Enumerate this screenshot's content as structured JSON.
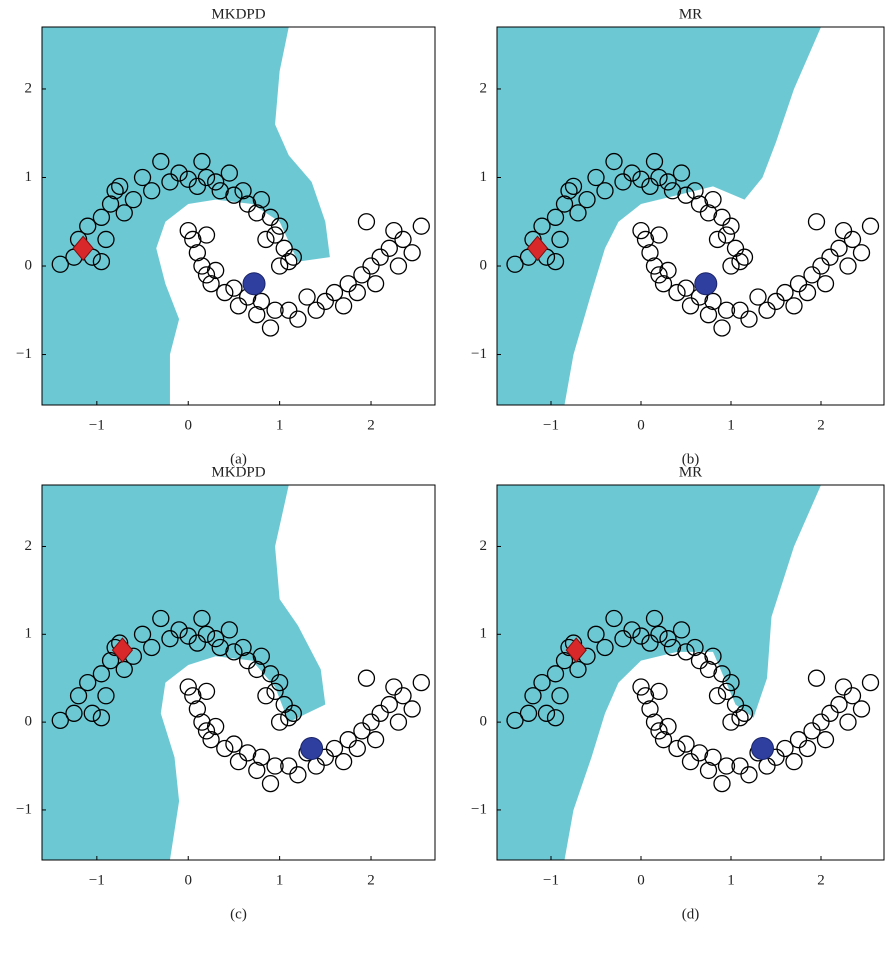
{
  "chart_data": [
    {
      "type": "scatter",
      "title": "MKDPD",
      "caption": "(a)",
      "xlim": [
        -1.6,
        2.7
      ],
      "ylim": [
        -1.57,
        2.7
      ],
      "xticks": [
        {
          "value": -1,
          "label": "−1"
        },
        0,
        1,
        2
      ],
      "yticks": [
        {
          "value": -1,
          "label": "−1"
        },
        0,
        1,
        2
      ],
      "region": {
        "color": "#6cc9d4",
        "x": [
          -1.6,
          1.1,
          1.0,
          0.95,
          1.1,
          1.35,
          1.5,
          1.55,
          1.2,
          1.0,
          0.7,
          0.3,
          0.0,
          -0.25,
          -0.35,
          -0.25,
          -0.1,
          -0.2,
          -0.2,
          -1.6
        ],
        "y": [
          2.7,
          2.7,
          2.2,
          1.6,
          1.25,
          0.95,
          0.5,
          0.1,
          0.05,
          0.5,
          0.7,
          0.75,
          0.7,
          0.5,
          0.2,
          -0.2,
          -0.6,
          -1.0,
          -1.57,
          -1.57
        ]
      },
      "scatter": {
        "color": "#000000",
        "x": [
          -1.4,
          -1.2,
          -1.1,
          -1.05,
          -0.95,
          -0.85,
          -0.8,
          -0.7,
          -0.75,
          -0.6,
          -0.5,
          -0.4,
          -0.3,
          -0.2,
          -0.1,
          0,
          0.1,
          0.15,
          0.2,
          0.3,
          0.35,
          0.45,
          0.5,
          0.6,
          0.65,
          0.75,
          0.8,
          0.9,
          0.95,
          1.0,
          1.05,
          1.1,
          1.15,
          1.0,
          0.85,
          -1.25,
          -0.9,
          -0.95,
          0,
          0.05,
          0.1,
          0.15,
          0.2,
          0.25,
          0.3,
          0.4,
          0.5,
          0.55,
          0.65,
          0.75,
          0.8,
          0.9,
          0.95,
          1.1,
          1.2,
          1.3,
          1.4,
          1.5,
          1.6,
          1.7,
          1.75,
          1.85,
          1.9,
          2.0,
          2.05,
          2.1,
          2.2,
          2.3,
          2.35,
          2.45,
          2.55,
          1.95,
          2.25,
          0.2
        ],
        "y": [
          0.02,
          0.3,
          0.45,
          0.1,
          0.55,
          0.7,
          0.85,
          0.6,
          0.9,
          0.75,
          1.0,
          0.85,
          1.18,
          0.95,
          1.05,
          0.98,
          0.9,
          1.18,
          1.0,
          0.95,
          0.85,
          1.05,
          0.8,
          0.85,
          0.7,
          0.6,
          0.75,
          0.55,
          0.35,
          0.45,
          0.2,
          0.05,
          0.1,
          0.0,
          0.3,
          0.1,
          0.3,
          0.05,
          0.4,
          0.3,
          0.15,
          0.0,
          -0.1,
          -0.2,
          -0.05,
          -0.3,
          -0.25,
          -0.45,
          -0.35,
          -0.55,
          -0.4,
          -0.7,
          -0.5,
          -0.5,
          -0.6,
          -0.35,
          -0.5,
          -0.4,
          -0.3,
          -0.45,
          -0.2,
          -0.3,
          -0.1,
          0.0,
          -0.2,
          0.1,
          0.2,
          0.0,
          0.3,
          0.15,
          0.45,
          0.5,
          0.4,
          0.35
        ]
      },
      "labeled": [
        {
          "marker": "diamond",
          "color": "#d8282a",
          "x": -1.15,
          "y": 0.2
        },
        {
          "marker": "circle",
          "color": "#2e3fa0",
          "x": 0.72,
          "y": -0.2
        }
      ]
    },
    {
      "type": "scatter",
      "title": "MR",
      "caption": "(b)",
      "xlim": [
        -1.6,
        2.7
      ],
      "ylim": [
        -1.57,
        2.7
      ],
      "xticks": [
        {
          "value": -1,
          "label": "−1"
        },
        0,
        1,
        2
      ],
      "yticks": [
        {
          "value": -1,
          "label": "−1"
        },
        0,
        1,
        2
      ],
      "region": {
        "color": "#6cc9d4",
        "x": [
          -1.6,
          2.0,
          1.7,
          1.5,
          1.35,
          1.15,
          0.8,
          0.4,
          0.0,
          -0.25,
          -0.4,
          -0.55,
          -0.75,
          -0.85,
          -1.6
        ],
        "y": [
          2.7,
          2.7,
          2.0,
          1.4,
          1.0,
          0.75,
          0.9,
          0.8,
          0.7,
          0.5,
          0.2,
          -0.3,
          -1.0,
          -1.57,
          -1.57
        ]
      },
      "scatter": {
        "color": "#000000",
        "x": [
          -1.4,
          -1.2,
          -1.1,
          -1.05,
          -0.95,
          -0.85,
          -0.8,
          -0.7,
          -0.75,
          -0.6,
          -0.5,
          -0.4,
          -0.3,
          -0.2,
          -0.1,
          0,
          0.1,
          0.15,
          0.2,
          0.3,
          0.35,
          0.45,
          0.5,
          0.6,
          0.65,
          0.75,
          0.8,
          0.9,
          0.95,
          1.0,
          1.05,
          1.1,
          1.15,
          1.0,
          0.85,
          -1.25,
          -0.9,
          -0.95,
          0,
          0.05,
          0.1,
          0.15,
          0.2,
          0.25,
          0.3,
          0.4,
          0.5,
          0.55,
          0.65,
          0.75,
          0.8,
          0.9,
          0.95,
          1.1,
          1.2,
          1.3,
          1.4,
          1.5,
          1.6,
          1.7,
          1.75,
          1.85,
          1.9,
          2.0,
          2.05,
          2.1,
          2.2,
          2.3,
          2.35,
          2.45,
          2.55,
          1.95,
          2.25,
          0.2
        ],
        "y": [
          0.02,
          0.3,
          0.45,
          0.1,
          0.55,
          0.7,
          0.85,
          0.6,
          0.9,
          0.75,
          1.0,
          0.85,
          1.18,
          0.95,
          1.05,
          0.98,
          0.9,
          1.18,
          1.0,
          0.95,
          0.85,
          1.05,
          0.8,
          0.85,
          0.7,
          0.6,
          0.75,
          0.55,
          0.35,
          0.45,
          0.2,
          0.05,
          0.1,
          0.0,
          0.3,
          0.1,
          0.3,
          0.05,
          0.4,
          0.3,
          0.15,
          0.0,
          -0.1,
          -0.2,
          -0.05,
          -0.3,
          -0.25,
          -0.45,
          -0.35,
          -0.55,
          -0.4,
          -0.7,
          -0.5,
          -0.5,
          -0.6,
          -0.35,
          -0.5,
          -0.4,
          -0.3,
          -0.45,
          -0.2,
          -0.3,
          -0.1,
          0.0,
          -0.2,
          0.1,
          0.2,
          0.0,
          0.3,
          0.15,
          0.45,
          0.5,
          0.4,
          0.35
        ]
      },
      "labeled": [
        {
          "marker": "diamond",
          "color": "#d8282a",
          "x": -1.15,
          "y": 0.2
        },
        {
          "marker": "circle",
          "color": "#2e3fa0",
          "x": 0.72,
          "y": -0.2
        }
      ]
    },
    {
      "type": "scatter",
      "title": "MKDPD",
      "caption": "(c)",
      "xlim": [
        -1.6,
        2.7
      ],
      "ylim": [
        -1.57,
        2.7
      ],
      "xticks": [
        {
          "value": -1,
          "label": "−1"
        },
        0,
        1,
        2
      ],
      "yticks": [
        {
          "value": -1,
          "label": "−1"
        },
        0,
        1,
        2
      ],
      "region": {
        "color": "#6cc9d4",
        "x": [
          -1.6,
          1.1,
          0.95,
          1.0,
          1.2,
          1.45,
          1.5,
          1.1,
          0.95,
          0.7,
          0.3,
          0.0,
          -0.25,
          -0.3,
          -0.15,
          -0.1,
          -0.2,
          -1.6
        ],
        "y": [
          2.7,
          2.7,
          2.0,
          1.4,
          1.1,
          0.6,
          0.2,
          0.0,
          0.4,
          0.7,
          0.75,
          0.65,
          0.45,
          0.1,
          -0.4,
          -0.9,
          -1.57,
          -1.57
        ]
      },
      "scatter": {
        "color": "#000000",
        "x": [
          -1.4,
          -1.2,
          -1.1,
          -1.05,
          -0.95,
          -0.85,
          -0.8,
          -0.7,
          -0.75,
          -0.6,
          -0.5,
          -0.4,
          -0.3,
          -0.2,
          -0.1,
          0,
          0.1,
          0.15,
          0.2,
          0.3,
          0.35,
          0.45,
          0.5,
          0.6,
          0.65,
          0.75,
          0.8,
          0.9,
          0.95,
          1.0,
          1.05,
          1.1,
          1.15,
          1.0,
          0.85,
          -1.25,
          -0.9,
          -0.95,
          0,
          0.05,
          0.1,
          0.15,
          0.2,
          0.25,
          0.3,
          0.4,
          0.5,
          0.55,
          0.65,
          0.75,
          0.8,
          0.9,
          0.95,
          1.1,
          1.2,
          1.3,
          1.4,
          1.5,
          1.6,
          1.7,
          1.75,
          1.85,
          1.9,
          2.0,
          2.05,
          2.1,
          2.2,
          2.3,
          2.35,
          2.45,
          2.55,
          1.95,
          2.25,
          0.2
        ],
        "y": [
          0.02,
          0.3,
          0.45,
          0.1,
          0.55,
          0.7,
          0.85,
          0.6,
          0.9,
          0.75,
          1.0,
          0.85,
          1.18,
          0.95,
          1.05,
          0.98,
          0.9,
          1.18,
          1.0,
          0.95,
          0.85,
          1.05,
          0.8,
          0.85,
          0.7,
          0.6,
          0.75,
          0.55,
          0.35,
          0.45,
          0.2,
          0.05,
          0.1,
          0.0,
          0.3,
          0.1,
          0.3,
          0.05,
          0.4,
          0.3,
          0.15,
          0.0,
          -0.1,
          -0.2,
          -0.05,
          -0.3,
          -0.25,
          -0.45,
          -0.35,
          -0.55,
          -0.4,
          -0.7,
          -0.5,
          -0.5,
          -0.6,
          -0.35,
          -0.5,
          -0.4,
          -0.3,
          -0.45,
          -0.2,
          -0.3,
          -0.1,
          0.0,
          -0.2,
          0.1,
          0.2,
          0.0,
          0.3,
          0.15,
          0.45,
          0.5,
          0.4,
          0.35
        ]
      },
      "labeled": [
        {
          "marker": "diamond",
          "color": "#d8282a",
          "x": -0.72,
          "y": 0.82
        },
        {
          "marker": "circle",
          "color": "#2e3fa0",
          "x": 1.35,
          "y": -0.3
        }
      ]
    },
    {
      "type": "scatter",
      "title": "MR",
      "caption": "(d)",
      "xlim": [
        -1.6,
        2.7
      ],
      "ylim": [
        -1.57,
        2.7
      ],
      "xticks": [
        {
          "value": -1,
          "label": "−1"
        },
        0,
        1,
        2
      ],
      "yticks": [
        {
          "value": -1,
          "label": "−1"
        },
        0,
        1,
        2
      ],
      "region": {
        "color": "#6cc9d4",
        "x": [
          -1.6,
          2.0,
          1.7,
          1.45,
          1.4,
          1.25,
          1.05,
          0.8,
          0.4,
          0.0,
          -0.25,
          -0.4,
          -0.55,
          -0.75,
          -0.85,
          -1.6
        ],
        "y": [
          2.7,
          2.7,
          2.0,
          1.2,
          0.5,
          0.05,
          0.2,
          0.8,
          0.8,
          0.7,
          0.45,
          0.1,
          -0.4,
          -1.0,
          -1.57,
          -1.57
        ]
      },
      "scatter": {
        "color": "#000000",
        "x": [
          -1.4,
          -1.2,
          -1.1,
          -1.05,
          -0.95,
          -0.85,
          -0.8,
          -0.7,
          -0.75,
          -0.6,
          -0.5,
          -0.4,
          -0.3,
          -0.2,
          -0.1,
          0,
          0.1,
          0.15,
          0.2,
          0.3,
          0.35,
          0.45,
          0.5,
          0.6,
          0.65,
          0.75,
          0.8,
          0.9,
          0.95,
          1.0,
          1.05,
          1.1,
          1.15,
          1.0,
          0.85,
          -1.25,
          -0.9,
          -0.95,
          0,
          0.05,
          0.1,
          0.15,
          0.2,
          0.25,
          0.3,
          0.4,
          0.5,
          0.55,
          0.65,
          0.75,
          0.8,
          0.9,
          0.95,
          1.1,
          1.2,
          1.3,
          1.4,
          1.5,
          1.6,
          1.7,
          1.75,
          1.85,
          1.9,
          2.0,
          2.05,
          2.1,
          2.2,
          2.3,
          2.35,
          2.45,
          2.55,
          1.95,
          2.25,
          0.2
        ],
        "y": [
          0.02,
          0.3,
          0.45,
          0.1,
          0.55,
          0.7,
          0.85,
          0.6,
          0.9,
          0.75,
          1.0,
          0.85,
          1.18,
          0.95,
          1.05,
          0.98,
          0.9,
          1.18,
          1.0,
          0.95,
          0.85,
          1.05,
          0.8,
          0.85,
          0.7,
          0.6,
          0.75,
          0.55,
          0.35,
          0.45,
          0.2,
          0.05,
          0.1,
          0.0,
          0.3,
          0.1,
          0.3,
          0.05,
          0.4,
          0.3,
          0.15,
          0.0,
          -0.1,
          -0.2,
          -0.05,
          -0.3,
          -0.25,
          -0.45,
          -0.35,
          -0.55,
          -0.4,
          -0.7,
          -0.5,
          -0.5,
          -0.6,
          -0.35,
          -0.5,
          -0.4,
          -0.3,
          -0.45,
          -0.2,
          -0.3,
          -0.1,
          0.0,
          -0.2,
          0.1,
          0.2,
          0.0,
          0.3,
          0.15,
          0.45,
          0.5,
          0.4,
          0.35
        ]
      },
      "labeled": [
        {
          "marker": "diamond",
          "color": "#d8282a",
          "x": -0.72,
          "y": 0.82
        },
        {
          "marker": "circle",
          "color": "#2e3fa0",
          "x": 1.35,
          "y": -0.3
        }
      ]
    }
  ]
}
